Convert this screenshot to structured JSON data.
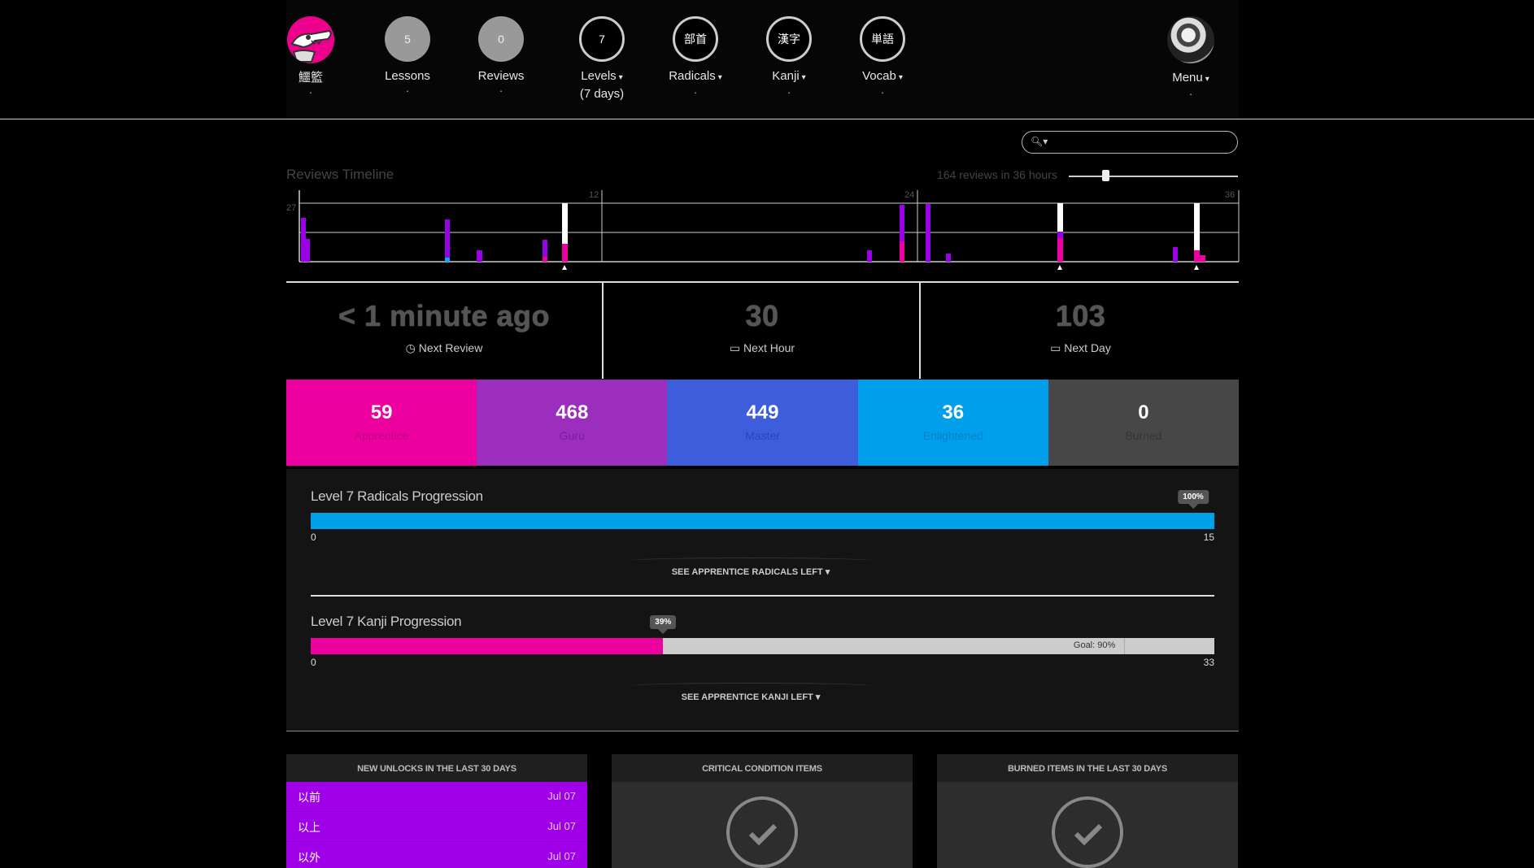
{
  "nav": {
    "profile_label": "鱷籃",
    "lessons": {
      "count": "5",
      "label": "Lessons"
    },
    "reviews": {
      "count": "0",
      "label": "Reviews"
    },
    "levels": {
      "value": "7",
      "label": "Levels",
      "sub": "(7 days)"
    },
    "radicals": {
      "glyph": "部首",
      "label": "Radicals"
    },
    "kanji": {
      "glyph": "漢字",
      "label": "Kanji"
    },
    "vocab": {
      "glyph": "単語",
      "label": "Vocab"
    },
    "menu": {
      "label": "Menu"
    },
    "dot": "."
  },
  "search": {
    "placeholder": ""
  },
  "timeline": {
    "title": "Reviews Timeline",
    "summary": "164 reviews in 36 hours",
    "y_label": "27",
    "tick_labels": [
      "12",
      "24",
      "36"
    ]
  },
  "next": {
    "review": {
      "value": "< 1 minute ago",
      "label": "Next Review"
    },
    "hour": {
      "value": "30",
      "label": "Next Hour"
    },
    "day": {
      "value": "103",
      "label": "Next Day"
    }
  },
  "srs": [
    {
      "count": "59",
      "label": "Apprentice",
      "color": "#ec00a0",
      "label_color": "#c30081"
    },
    {
      "count": "468",
      "label": "Guru",
      "color": "#9b2ebc",
      "label_color": "#7e1d9a"
    },
    {
      "count": "449",
      "label": "Master",
      "color": "#3d5ddd",
      "label_color": "#2b46b8"
    },
    {
      "count": "36",
      "label": "Enlightened",
      "color": "#009eeb",
      "label_color": "#0283c4"
    },
    {
      "count": "0",
      "label": "Burned",
      "color": "#474747",
      "label_color": "#363636"
    }
  ],
  "radicals_progress": {
    "title": "Level 7 Radicals Progression",
    "percent_label": "100%",
    "fraction": 1.0,
    "min": "0",
    "max": "15",
    "button": "SEE APPRENTICE RADICALS LEFT",
    "color": "#00a0e9"
  },
  "kanji_progress": {
    "title": "Level 7 Kanji Progression",
    "percent_label": "39%",
    "fraction": 0.39,
    "goal_fraction": 0.9,
    "goal_label": "Goal: 90%",
    "min": "0",
    "max": "33",
    "button": "SEE APPRENTICE KANJI LEFT",
    "color": "#ec00a0"
  },
  "panels": {
    "unlocks": {
      "title": "NEW UNLOCKS IN THE LAST 30 DAYS",
      "items": [
        {
          "word": "以前",
          "date": "Jul 07"
        },
        {
          "word": "以上",
          "date": "Jul 07"
        },
        {
          "word": "以外",
          "date": "Jul 07"
        }
      ]
    },
    "critical": {
      "title": "CRITICAL CONDITION ITEMS"
    },
    "burned": {
      "title": "BURNED ITEMS IN THE LAST 30 DAYS"
    }
  },
  "icons": {
    "search": "search-icon",
    "clock": "clock-icon",
    "inbox": "inbox-icon",
    "check": "check-icon",
    "chevron": "chevron-down-icon"
  }
}
